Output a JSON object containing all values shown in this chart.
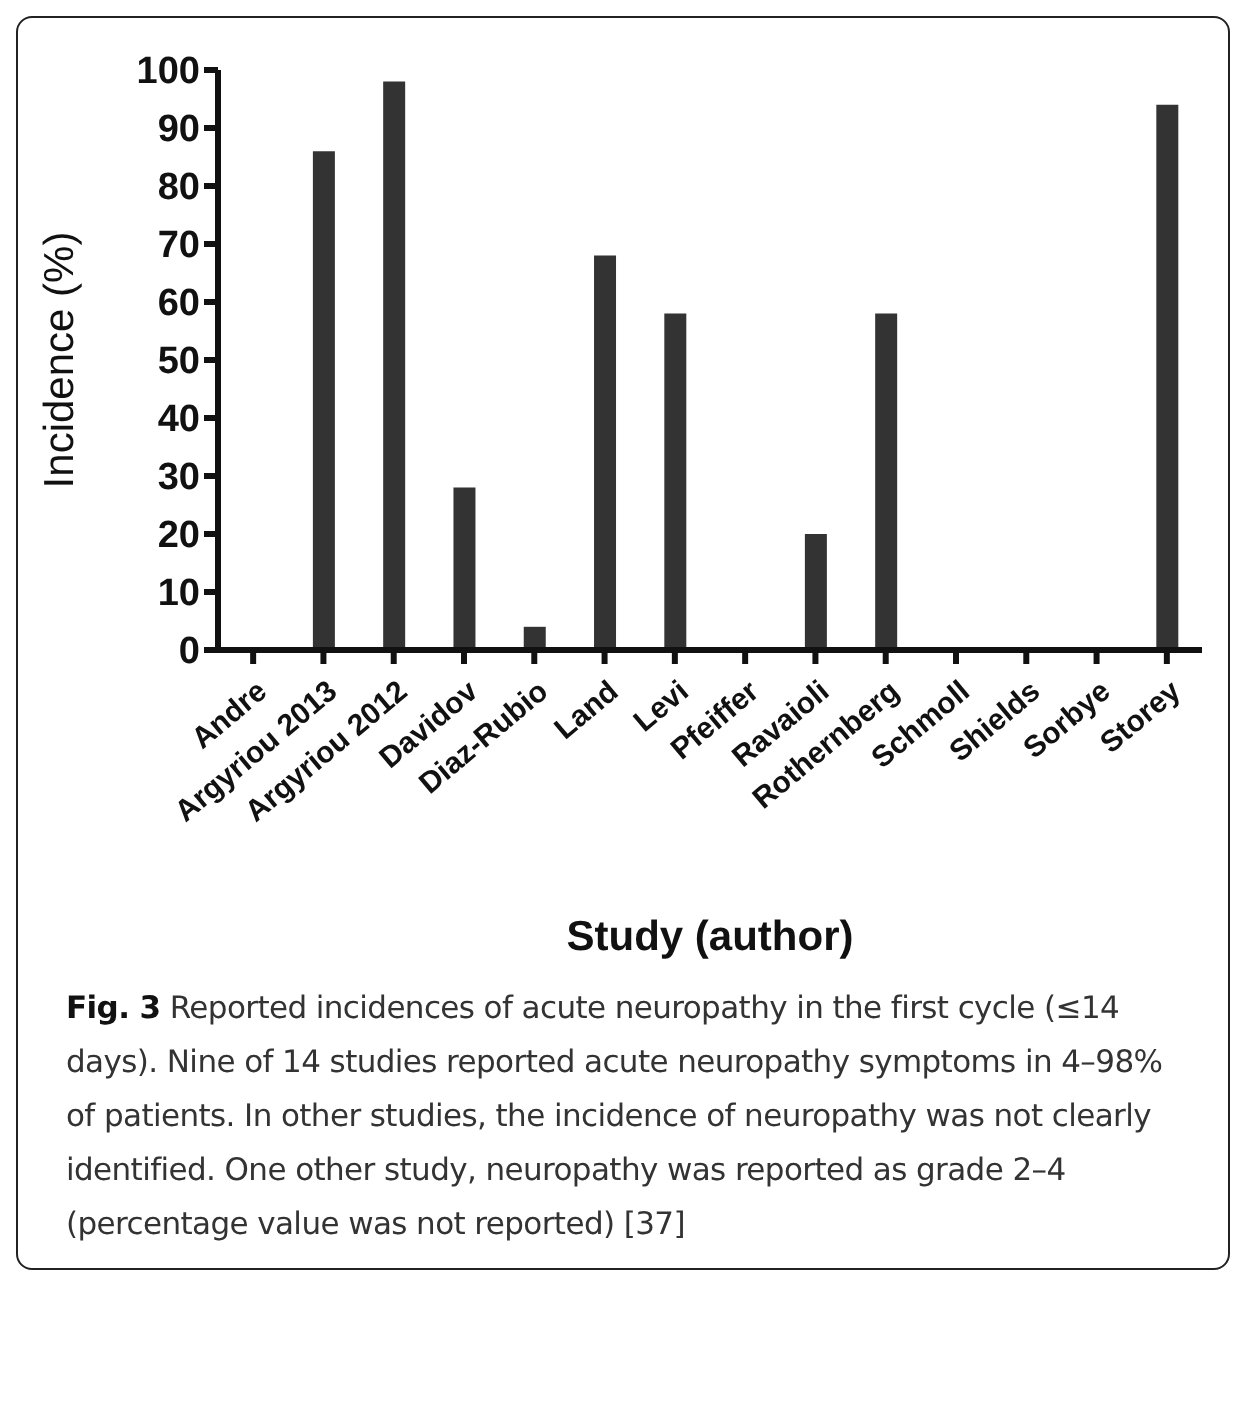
{
  "chart_data": {
    "type": "bar",
    "xlabel": "Study (author)",
    "ylabel": "Incidence (%)",
    "categories": [
      "Andre",
      "Argyriou 2013",
      "Argyriou 2012",
      "Davidov",
      "Diaz-Rubio",
      "Land",
      "Levi",
      "Pfeiffer",
      "Ravaioli",
      "Rothernberg",
      "Schmoll",
      "Shields",
      "Sorbye",
      "Storey"
    ],
    "values": [
      null,
      86,
      98,
      28,
      4,
      68,
      58,
      null,
      20,
      58,
      null,
      null,
      null,
      94
    ],
    "color": "#333333",
    "ylim": [
      0,
      100
    ],
    "yticks": [
      0,
      10,
      20,
      30,
      40,
      50,
      60,
      70,
      80,
      90,
      100
    ],
    "grid": false,
    "legend": false,
    "annotations": [
      "Fig. 3",
      "Reported incidences of acute neuropathy in the first cycle (≤14 days). Nine of 14 studies reported acute neuropathy symptoms in 4–98% of patients. In other studies, the incidence of neuropathy was not clearly identified. One other study, neuropathy was reported as grade 2–4 (percentage value was not reported) [37]"
    ]
  }
}
